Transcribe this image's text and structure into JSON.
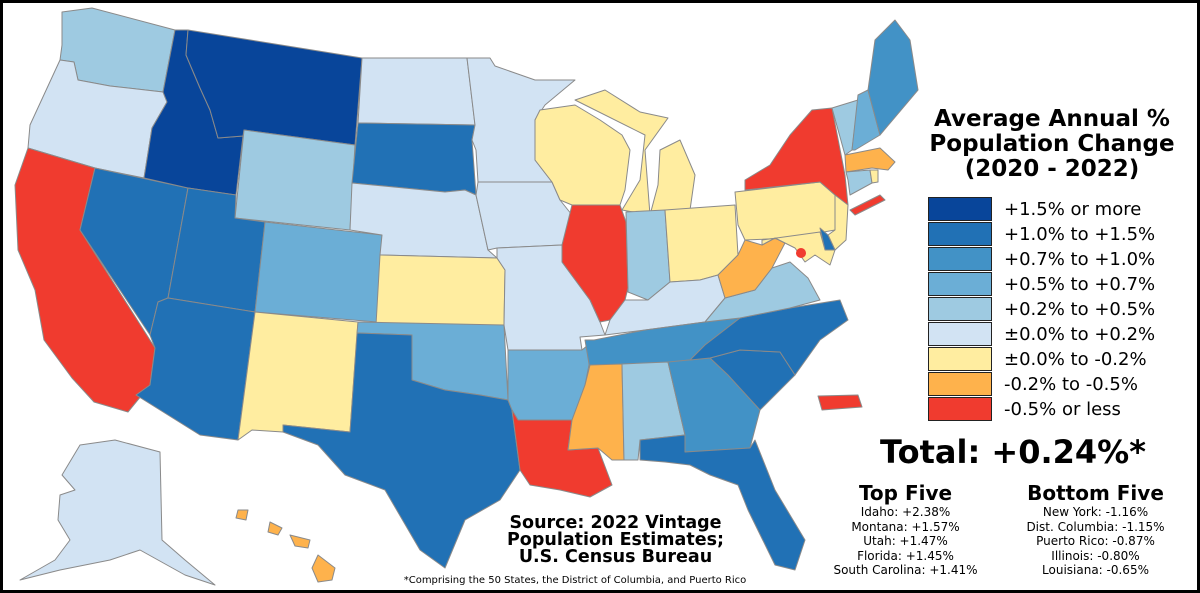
{
  "title": {
    "line1": "Average Annual %",
    "line2": "Population Change",
    "line3": "(2020 - 2022)"
  },
  "legend": [
    {
      "label": "+1.5% or more",
      "color": "#08459a"
    },
    {
      "label": "+1.0% to +1.5%",
      "color": "#2171b5"
    },
    {
      "label": "+0.7% to +1.0%",
      "color": "#4292c6"
    },
    {
      "label": "+0.5% to +0.7%",
      "color": "#6baed6"
    },
    {
      "label": "+0.2% to +0.5%",
      "color": "#9ecae1"
    },
    {
      "label": "±0.0% to +0.2%",
      "color": "#d2e3f3"
    },
    {
      "label": "±0.0% to -0.2%",
      "color": "#ffeda0"
    },
    {
      "label": "-0.2% to -0.5%",
      "color": "#feb24c"
    },
    {
      "label": "-0.5% or less",
      "color": "#f03b2f"
    }
  ],
  "total": "Total: +0.24%*",
  "top_five": {
    "heading": "Top Five",
    "items": [
      "Idaho: +2.38%",
      "Montana: +1.57%",
      "Utah: +1.47%",
      "Florida: +1.45%",
      "South Carolina: +1.41%"
    ]
  },
  "bottom_five": {
    "heading": "Bottom Five",
    "items": [
      "New York: -1.16%",
      "Dist. Columbia: -1.15%",
      "Puerto Rico: -0.87%",
      "Illinois: -0.80%",
      "Louisiana: -0.65%"
    ]
  },
  "source": {
    "line1": "Source: 2022 Vintage",
    "line2": "Population Estimates;",
    "line3": "U.S. Census Bureau"
  },
  "footnote": "*Comprising the 50 States, the District of Columbia, and Puerto Rico",
  "states": {
    "WA": 4,
    "OR": 5,
    "CA": 8,
    "NV": 1,
    "ID": 0,
    "MT": 0,
    "WY": 4,
    "UT": 1,
    "AZ": 1,
    "CO": 3,
    "NM": 6,
    "ND": 5,
    "SD": 1,
    "NE": 5,
    "KS": 6,
    "OK": 3,
    "TX": 1,
    "MN": 5,
    "IA": 5,
    "MO": 5,
    "AR": 3,
    "LA": 8,
    "WI": 6,
    "IL": 8,
    "MI": 6,
    "IN": 4,
    "OH": 6,
    "KY": 5,
    "TN": 2,
    "MS": 7,
    "AL": 4,
    "GA": 2,
    "FL": 1,
    "SC": 1,
    "NC": 1,
    "VA": 4,
    "WV": 7,
    "PA": 6,
    "NY": 8,
    "VT": 4,
    "NH": 3,
    "ME": 2,
    "MA": 7,
    "RI": 6,
    "CT": 4,
    "NJ": 6,
    "DE": 1,
    "MD": 6,
    "DC": 8,
    "AK": 5,
    "HI": 7,
    "PR": 8
  }
}
